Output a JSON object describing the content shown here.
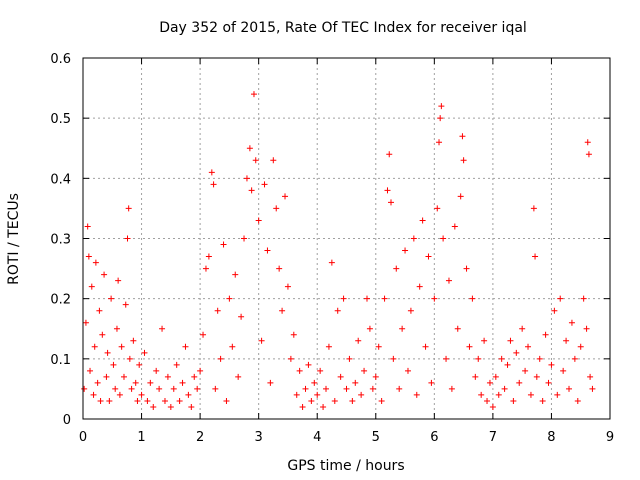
{
  "chart_data": {
    "type": "scatter",
    "title": "Day 352 of 2015, Rate Of TEC Index for receiver iqal",
    "xlabel": "GPS time / hours",
    "ylabel": "ROTI / TECUs",
    "xlim": [
      0,
      9
    ],
    "ylim": [
      0,
      0.6
    ],
    "xticks": [
      0,
      1,
      2,
      3,
      4,
      5,
      6,
      7,
      8,
      9
    ],
    "xtick_labels": [
      "0",
      "1",
      "2",
      "3",
      "4",
      "5",
      "6",
      "7",
      "8",
      "9"
    ],
    "yticks": [
      0,
      0.1,
      0.2,
      0.3,
      0.4,
      0.5,
      0.6
    ],
    "ytick_labels": [
      "0",
      "0.1",
      "0.2",
      "0.3",
      "0.4",
      "0.5",
      "0.6"
    ],
    "grid": true,
    "marker": "+",
    "color": "#ff0000",
    "series": [
      {
        "name": "ROTI",
        "points": [
          [
            0.02,
            0.05
          ],
          [
            0.05,
            0.16
          ],
          [
            0.08,
            0.32
          ],
          [
            0.1,
            0.27
          ],
          [
            0.12,
            0.08
          ],
          [
            0.15,
            0.22
          ],
          [
            0.18,
            0.04
          ],
          [
            0.2,
            0.12
          ],
          [
            0.22,
            0.26
          ],
          [
            0.25,
            0.06
          ],
          [
            0.28,
            0.18
          ],
          [
            0.3,
            0.03
          ],
          [
            0.33,
            0.14
          ],
          [
            0.36,
            0.24
          ],
          [
            0.4,
            0.07
          ],
          [
            0.42,
            0.11
          ],
          [
            0.45,
            0.03
          ],
          [
            0.48,
            0.2
          ],
          [
            0.52,
            0.09
          ],
          [
            0.55,
            0.05
          ],
          [
            0.58,
            0.15
          ],
          [
            0.6,
            0.23
          ],
          [
            0.63,
            0.04
          ],
          [
            0.66,
            0.12
          ],
          [
            0.7,
            0.07
          ],
          [
            0.73,
            0.19
          ],
          [
            0.76,
            0.3
          ],
          [
            0.78,
            0.35
          ],
          [
            0.8,
            0.1
          ],
          [
            0.83,
            0.05
          ],
          [
            0.86,
            0.13
          ],
          [
            0.9,
            0.06
          ],
          [
            0.93,
            0.03
          ],
          [
            0.96,
            0.09
          ],
          [
            1.0,
            0.04
          ],
          [
            1.05,
            0.11
          ],
          [
            1.1,
            0.03
          ],
          [
            1.15,
            0.06
          ],
          [
            1.2,
            0.02
          ],
          [
            1.25,
            0.08
          ],
          [
            1.3,
            0.05
          ],
          [
            1.35,
            0.15
          ],
          [
            1.4,
            0.03
          ],
          [
            1.45,
            0.07
          ],
          [
            1.5,
            0.02
          ],
          [
            1.55,
            0.05
          ],
          [
            1.6,
            0.09
          ],
          [
            1.65,
            0.03
          ],
          [
            1.7,
            0.06
          ],
          [
            1.75,
            0.12
          ],
          [
            1.8,
            0.04
          ],
          [
            1.85,
            0.02
          ],
          [
            1.9,
            0.07
          ],
          [
            1.95,
            0.05
          ],
          [
            2.0,
            0.08
          ],
          [
            2.05,
            0.14
          ],
          [
            2.1,
            0.25
          ],
          [
            2.15,
            0.27
          ],
          [
            2.2,
            0.41
          ],
          [
            2.23,
            0.39
          ],
          [
            2.26,
            0.05
          ],
          [
            2.3,
            0.18
          ],
          [
            2.35,
            0.1
          ],
          [
            2.4,
            0.29
          ],
          [
            2.45,
            0.03
          ],
          [
            2.5,
            0.2
          ],
          [
            2.55,
            0.12
          ],
          [
            2.6,
            0.24
          ],
          [
            2.65,
            0.07
          ],
          [
            2.7,
            0.17
          ],
          [
            2.75,
            0.3
          ],
          [
            2.8,
            0.4
          ],
          [
            2.85,
            0.45
          ],
          [
            2.88,
            0.38
          ],
          [
            2.92,
            0.54
          ],
          [
            2.95,
            0.43
          ],
          [
            3.0,
            0.33
          ],
          [
            3.05,
            0.13
          ],
          [
            3.1,
            0.39
          ],
          [
            3.15,
            0.28
          ],
          [
            3.2,
            0.06
          ],
          [
            3.25,
            0.43
          ],
          [
            3.3,
            0.35
          ],
          [
            3.35,
            0.25
          ],
          [
            3.4,
            0.18
          ],
          [
            3.45,
            0.37
          ],
          [
            3.5,
            0.22
          ],
          [
            3.55,
            0.1
          ],
          [
            3.6,
            0.14
          ],
          [
            3.65,
            0.04
          ],
          [
            3.7,
            0.08
          ],
          [
            3.75,
            0.02
          ],
          [
            3.8,
            0.05
          ],
          [
            3.85,
            0.09
          ],
          [
            3.9,
            0.03
          ],
          [
            3.95,
            0.06
          ],
          [
            4.0,
            0.04
          ],
          [
            4.05,
            0.08
          ],
          [
            4.1,
            0.02
          ],
          [
            4.15,
            0.05
          ],
          [
            4.2,
            0.12
          ],
          [
            4.25,
            0.26
          ],
          [
            4.3,
            0.03
          ],
          [
            4.35,
            0.18
          ],
          [
            4.4,
            0.07
          ],
          [
            4.45,
            0.2
          ],
          [
            4.5,
            0.05
          ],
          [
            4.55,
            0.1
          ],
          [
            4.6,
            0.03
          ],
          [
            4.65,
            0.06
          ],
          [
            4.7,
            0.13
          ],
          [
            4.75,
            0.04
          ],
          [
            4.8,
            0.08
          ],
          [
            4.85,
            0.2
          ],
          [
            4.9,
            0.15
          ],
          [
            4.95,
            0.05
          ],
          [
            5.0,
            0.07
          ],
          [
            5.05,
            0.12
          ],
          [
            5.1,
            0.03
          ],
          [
            5.15,
            0.2
          ],
          [
            5.2,
            0.38
          ],
          [
            5.23,
            0.44
          ],
          [
            5.26,
            0.36
          ],
          [
            5.3,
            0.1
          ],
          [
            5.35,
            0.25
          ],
          [
            5.4,
            0.05
          ],
          [
            5.45,
            0.15
          ],
          [
            5.5,
            0.28
          ],
          [
            5.55,
            0.08
          ],
          [
            5.6,
            0.18
          ],
          [
            5.65,
            0.3
          ],
          [
            5.7,
            0.04
          ],
          [
            5.75,
            0.22
          ],
          [
            5.8,
            0.33
          ],
          [
            5.85,
            0.12
          ],
          [
            5.9,
            0.27
          ],
          [
            5.95,
            0.06
          ],
          [
            6.0,
            0.2
          ],
          [
            6.05,
            0.35
          ],
          [
            6.08,
            0.46
          ],
          [
            6.1,
            0.5
          ],
          [
            6.12,
            0.52
          ],
          [
            6.15,
            0.3
          ],
          [
            6.2,
            0.1
          ],
          [
            6.25,
            0.23
          ],
          [
            6.3,
            0.05
          ],
          [
            6.35,
            0.32
          ],
          [
            6.4,
            0.15
          ],
          [
            6.45,
            0.37
          ],
          [
            6.48,
            0.47
          ],
          [
            6.5,
            0.43
          ],
          [
            6.55,
            0.25
          ],
          [
            6.6,
            0.12
          ],
          [
            6.65,
            0.2
          ],
          [
            6.7,
            0.07
          ],
          [
            6.75,
            0.1
          ],
          [
            6.8,
            0.04
          ],
          [
            6.85,
            0.13
          ],
          [
            6.9,
            0.03
          ],
          [
            6.95,
            0.06
          ],
          [
            7.0,
            0.02
          ],
          [
            7.05,
            0.07
          ],
          [
            7.1,
            0.04
          ],
          [
            7.15,
            0.1
          ],
          [
            7.2,
            0.05
          ],
          [
            7.25,
            0.09
          ],
          [
            7.3,
            0.13
          ],
          [
            7.35,
            0.03
          ],
          [
            7.4,
            0.11
          ],
          [
            7.45,
            0.06
          ],
          [
            7.5,
            0.15
          ],
          [
            7.55,
            0.08
          ],
          [
            7.6,
            0.12
          ],
          [
            7.65,
            0.04
          ],
          [
            7.7,
            0.35
          ],
          [
            7.72,
            0.27
          ],
          [
            7.75,
            0.07
          ],
          [
            7.8,
            0.1
          ],
          [
            7.85,
            0.03
          ],
          [
            7.9,
            0.14
          ],
          [
            7.95,
            0.06
          ],
          [
            8.0,
            0.09
          ],
          [
            8.05,
            0.18
          ],
          [
            8.1,
            0.04
          ],
          [
            8.15,
            0.2
          ],
          [
            8.2,
            0.08
          ],
          [
            8.25,
            0.13
          ],
          [
            8.3,
            0.05
          ],
          [
            8.35,
            0.16
          ],
          [
            8.4,
            0.1
          ],
          [
            8.45,
            0.03
          ],
          [
            8.5,
            0.12
          ],
          [
            8.55,
            0.2
          ],
          [
            8.6,
            0.15
          ],
          [
            8.62,
            0.46
          ],
          [
            8.64,
            0.44
          ],
          [
            8.66,
            0.07
          ],
          [
            8.7,
            0.05
          ]
        ]
      }
    ]
  }
}
